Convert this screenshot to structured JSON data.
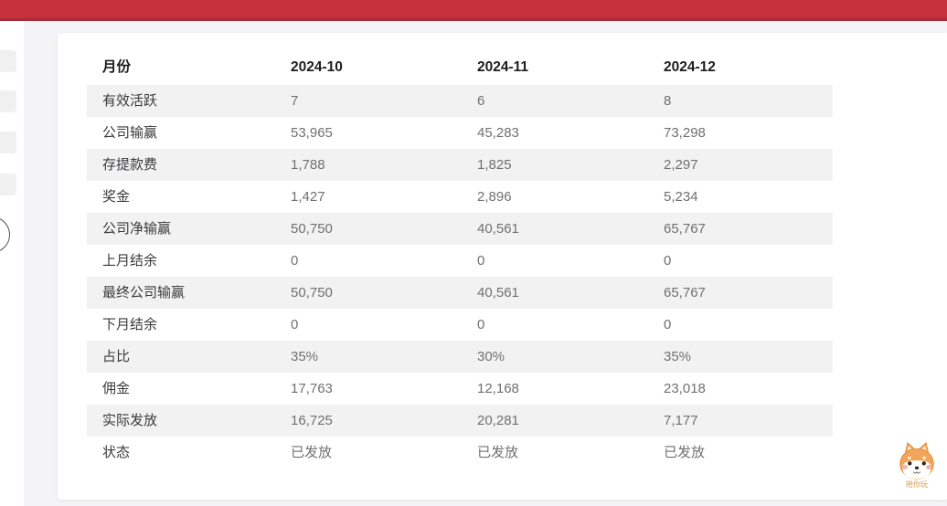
{
  "topbar": {
    "color": "#c5323d"
  },
  "table": {
    "columns": [
      "月份",
      "2024-10",
      "2024-11",
      "2024-12"
    ],
    "rows": [
      {
        "label": "有效活跃",
        "values": [
          "7",
          "6",
          "8"
        ]
      },
      {
        "label": "公司输赢",
        "values": [
          "53,965",
          "45,283",
          "73,298"
        ]
      },
      {
        "label": "存提款费",
        "values": [
          "1,788",
          "1,825",
          "2,297"
        ]
      },
      {
        "label": "奖金",
        "values": [
          "1,427",
          "2,896",
          "5,234"
        ]
      },
      {
        "label": "公司净输赢",
        "values": [
          "50,750",
          "40,561",
          "65,767"
        ]
      },
      {
        "label": "上月结余",
        "values": [
          "0",
          "0",
          "0"
        ]
      },
      {
        "label": "最终公司输赢",
        "values": [
          "50,750",
          "40,561",
          "65,767"
        ]
      },
      {
        "label": "下月结余",
        "values": [
          "0",
          "0",
          "0"
        ]
      },
      {
        "label": "占比",
        "values": [
          "35%",
          "30%",
          "35%"
        ]
      },
      {
        "label": "佣金",
        "values": [
          "17,763",
          "12,168",
          "23,018"
        ]
      },
      {
        "label": "实际发放",
        "values": [
          "16,725",
          "20,281",
          "7,177"
        ]
      },
      {
        "label": "状态",
        "values": [
          "已发放",
          "已发放",
          "已发放"
        ]
      }
    ]
  },
  "mascot": {
    "caption": "陪你玩"
  }
}
